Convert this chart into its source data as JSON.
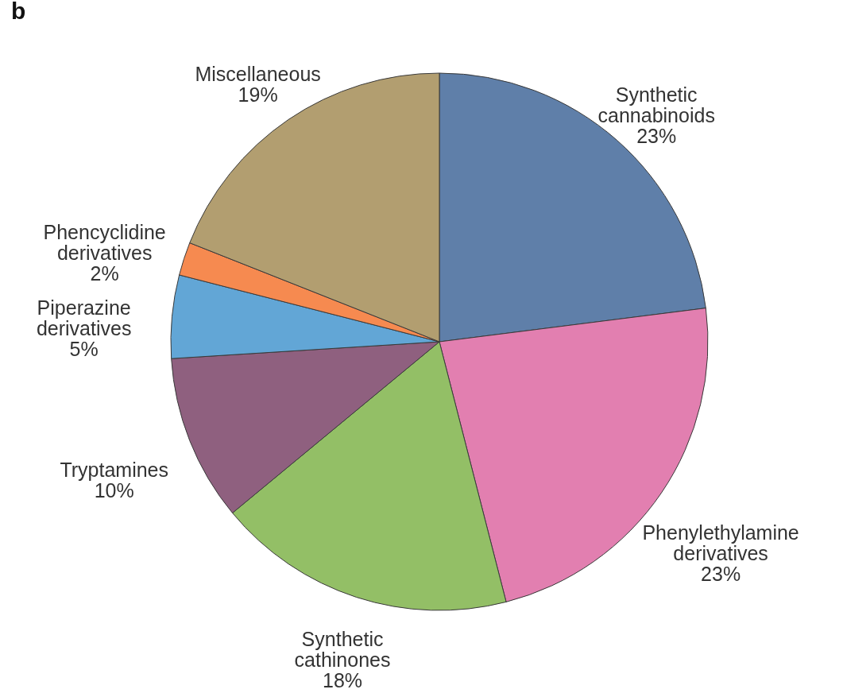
{
  "chart_data": {
    "type": "pie",
    "title": "b",
    "categories": [
      "Synthetic cannabinoids",
      "Phenylethylamine derivatives",
      "Synthetic cathinones",
      "Tryptamines",
      "Piperazine derivatives",
      "Phencyclidine derivatives",
      "Miscellaneous"
    ],
    "values": [
      23,
      23,
      18,
      10,
      5,
      2,
      19
    ],
    "value_labels": [
      "23%",
      "23%",
      "18%",
      "10%",
      "5%",
      "2%",
      "19%"
    ],
    "colors": [
      "#5f7fa9",
      "#e27fb0",
      "#93bf66",
      "#8f607f",
      "#62a6d6",
      "#f68a50",
      "#b29e70"
    ],
    "legend": false
  }
}
